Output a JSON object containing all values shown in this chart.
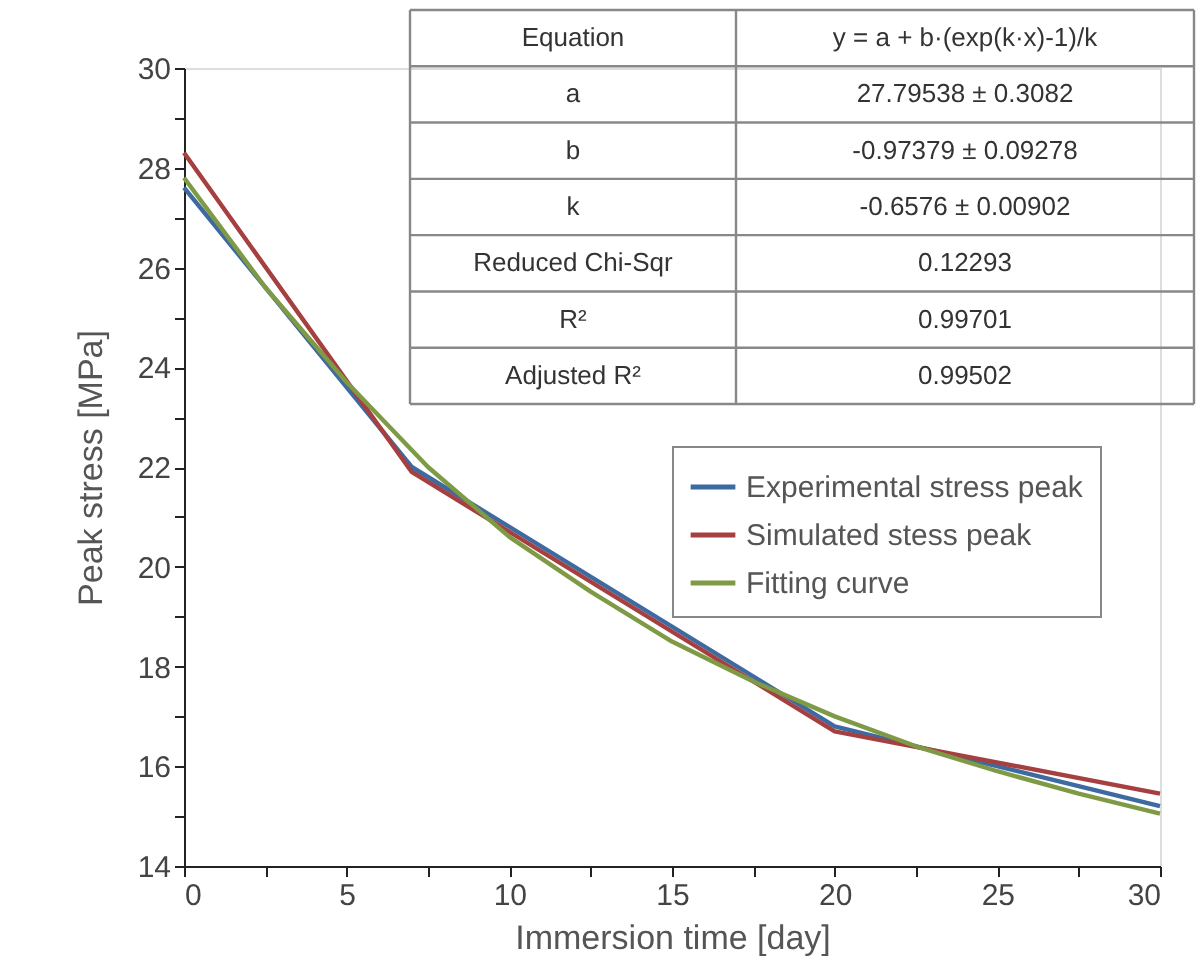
{
  "chart_data": {
    "type": "line",
    "xlabel": "Immersion time [day]",
    "ylabel": "Peak stress [MPa]",
    "xlim": [
      0,
      30
    ],
    "ylim": [
      14,
      30
    ],
    "xticks": [
      0,
      {
        "value": 2.5,
        "label": null
      },
      5,
      {
        "value": 7.5,
        "label": null
      },
      10,
      {
        "value": 12.5,
        "label": null
      },
      15,
      {
        "value": 17.5,
        "label": null
      },
      20,
      {
        "value": 22.5,
        "label": null
      },
      25,
      {
        "value": 27.5,
        "label": null
      },
      30
    ],
    "yticks": [
      14,
      {
        "value": 15,
        "label": null
      },
      16,
      {
        "value": 17,
        "label": null
      },
      18,
      {
        "value": 19,
        "label": null
      },
      20,
      {
        "value": 21,
        "label": null
      },
      22,
      {
        "value": 23,
        "label": null
      },
      24,
      {
        "value": 25,
        "label": null
      },
      26,
      {
        "value": 27,
        "label": null
      },
      28,
      {
        "value": 29,
        "label": null
      },
      30
    ],
    "grid": false,
    "legend": "right",
    "line_style": "solid",
    "marker": "none",
    "series": [
      {
        "name": "Experimental stress peak",
        "color": "#3d6aa0",
        "x": [
          0,
          7,
          20,
          30
        ],
        "values": [
          27.6,
          22.0,
          16.8,
          15.2
        ]
      },
      {
        "name": "Simulated stess peak",
        "color": "#a63f3f",
        "x": [
          0,
          7,
          20,
          30
        ],
        "values": [
          28.3,
          21.9,
          16.7,
          15.45
        ]
      },
      {
        "name": "Fitting curve",
        "color": "#7f9a45",
        "x": [
          0,
          2.5,
          5,
          7.5,
          10,
          12.5,
          15,
          17.5,
          20,
          22.5,
          25,
          27.5,
          30
        ],
        "values": [
          27.8,
          25.6,
          23.7,
          22.0,
          20.6,
          19.5,
          18.5,
          17.7,
          17.0,
          16.4,
          15.9,
          15.45,
          15.05
        ]
      }
    ],
    "annotations": [
      "Equation",
      "y = a + b·(exp(k·x)-1)/k",
      "a",
      "27.79538 ± 0.3082",
      "b",
      "-0.97379 ± 0.09278",
      "k",
      "-0.6576 ± 0.00902",
      "Reduced Chi-Sqr",
      "0.12293",
      "R²",
      "0.99701",
      "Adjusted R²",
      "0.99502"
    ]
  }
}
